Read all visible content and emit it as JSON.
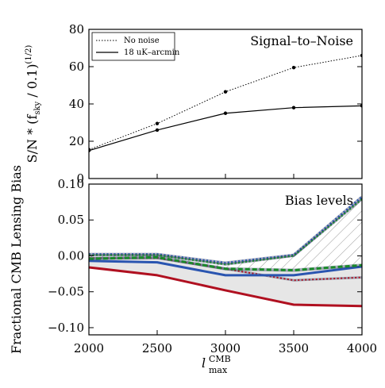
{
  "chart_data": [
    {
      "type": "line",
      "panel_title": "Signal–to–Noise",
      "ylabel": "S/N * (f_sky / 0.1)^(1/2)",
      "ylabel_parts": {
        "main": "S/N * (f",
        "sub": "sky",
        "mid": " / 0.1)",
        "sup": "(1/2)"
      },
      "x": [
        2000,
        2500,
        3000,
        3500,
        4000
      ],
      "xlim": [
        2000,
        4000
      ],
      "ylim": [
        0,
        80
      ],
      "yticks": [
        0,
        20,
        40,
        60,
        80
      ],
      "legend_position": "top-left",
      "series": [
        {
          "name": "No noise",
          "style": "dotted",
          "color": "#000000",
          "values": [
            15.5,
            29.5,
            46.5,
            59.5,
            66.0
          ]
        },
        {
          "name": "18 uK–arcmin",
          "style": "solid",
          "color": "#000000",
          "values": [
            15.0,
            26.0,
            35.0,
            38.0,
            39.0
          ]
        }
      ]
    },
    {
      "type": "line",
      "panel_title": "Bias levels",
      "ylabel": "Fractional CMB Lensing Bias",
      "x": [
        2000,
        2500,
        3000,
        3500,
        4000
      ],
      "xlim": [
        2000,
        4000
      ],
      "ylim": [
        -0.11,
        0.1
      ],
      "yticks": [
        -0.1,
        -0.05,
        0.0,
        0.05,
        0.1
      ],
      "ytick_labels": [
        "−0.10",
        "−0.05",
        "0.00",
        "0.05",
        "0.10"
      ],
      "xticks": [
        2000,
        2500,
        3000,
        3500,
        4000
      ],
      "xlabel": "l_max^CMB",
      "xlabel_parts": {
        "main": "l",
        "sup": "CMB",
        "sub": "max"
      },
      "series": [
        {
          "style": "solid",
          "color": "#b01020",
          "width": 3,
          "values": [
            -0.016,
            -0.027,
            -0.048,
            -0.068,
            -0.07
          ]
        },
        {
          "style": "dotted",
          "color": "#b01020",
          "width": 2,
          "values": [
            -0.003,
            -0.003,
            -0.018,
            -0.034,
            -0.03
          ]
        },
        {
          "style": "solid",
          "color": "#2a55b0",
          "width": 3,
          "values": [
            -0.007,
            -0.009,
            -0.027,
            -0.027,
            -0.015
          ]
        },
        {
          "style": "dashed",
          "color": "#1a8a2a",
          "width": 3,
          "values": [
            -0.004,
            -0.002,
            -0.018,
            -0.02,
            -0.013
          ]
        },
        {
          "style": "dotted",
          "color": "#2a55b0",
          "width": 3,
          "values": [
            0.002,
            0.002,
            -0.01,
            0.001,
            0.082
          ]
        },
        {
          "style": "dotted",
          "color": "#1a8a2a",
          "width": 2,
          "values": [
            0.001,
            0.001,
            -0.012,
            0.0,
            0.079
          ]
        }
      ],
      "bands": [
        {
          "fill": "#e6e6e6",
          "upper": [
            -0.003,
            -0.003,
            -0.018,
            -0.02,
            -0.013
          ],
          "lower": [
            -0.016,
            -0.027,
            -0.048,
            -0.068,
            -0.07
          ]
        },
        {
          "fill": "hatched",
          "upper": [
            0.002,
            0.002,
            -0.01,
            0.001,
            0.082
          ],
          "lower": [
            -0.004,
            -0.002,
            -0.018,
            -0.02,
            -0.013
          ]
        }
      ]
    }
  ]
}
